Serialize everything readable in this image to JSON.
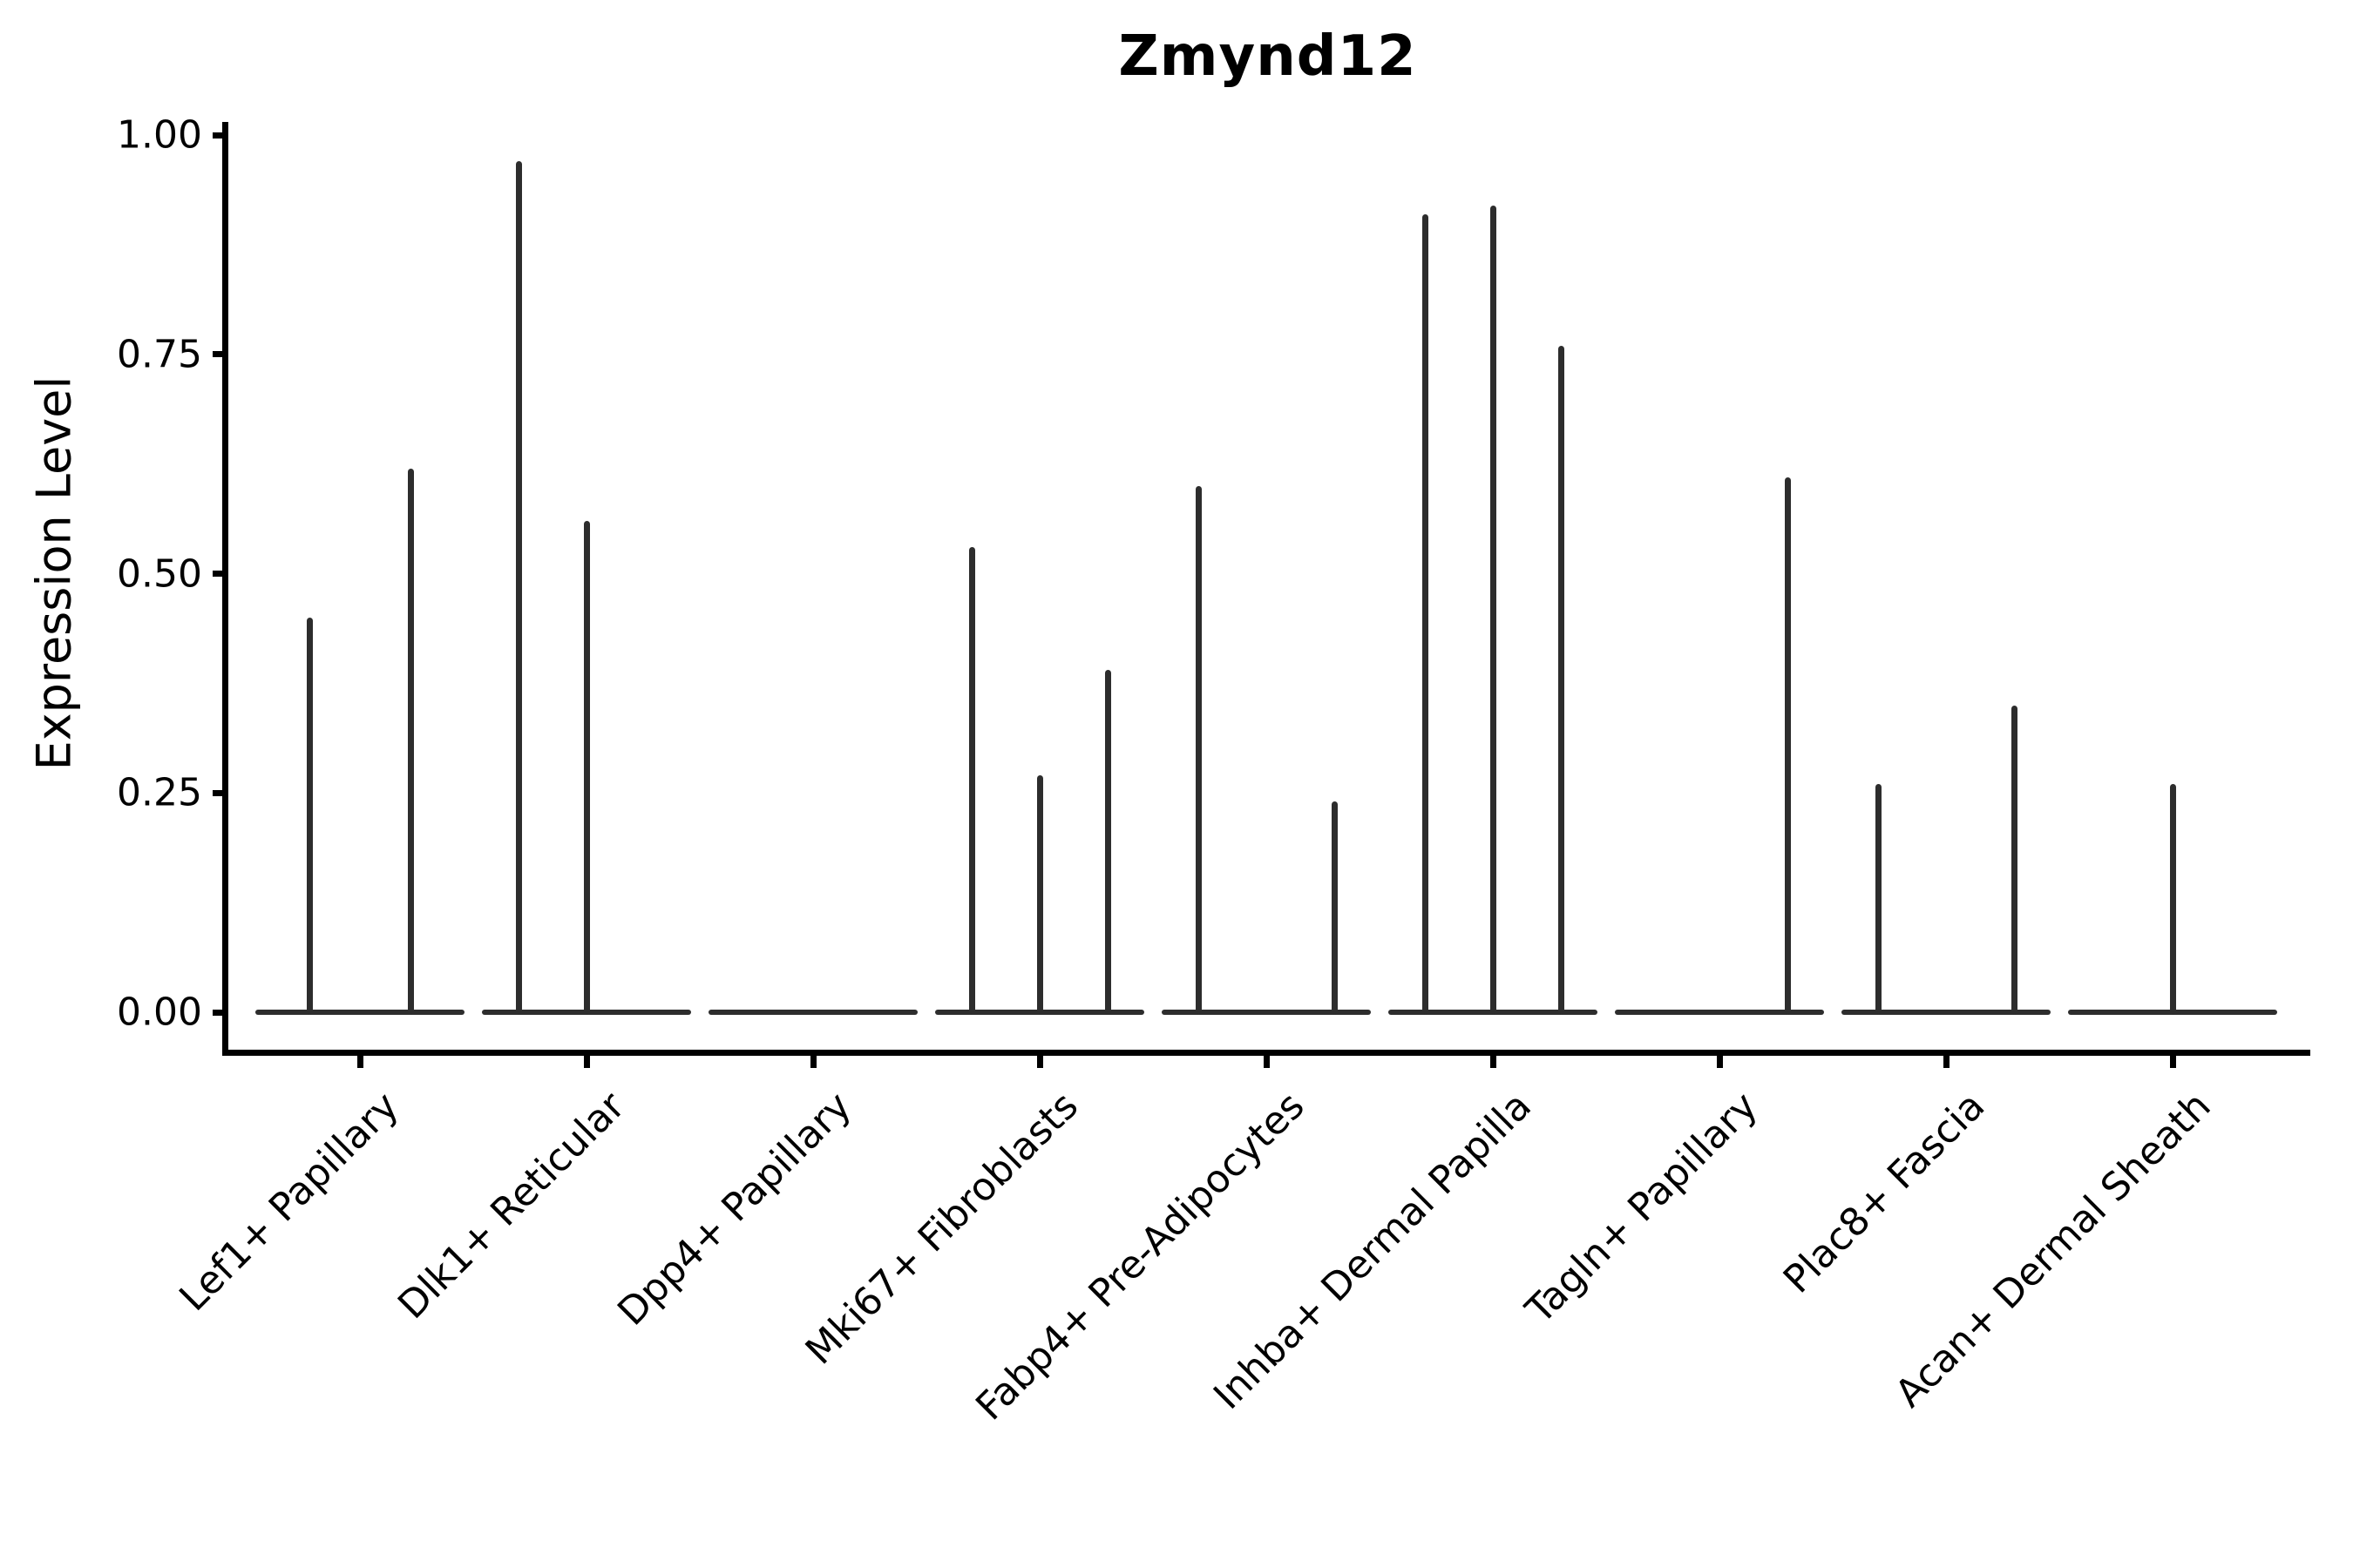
{
  "title": "Zmynd12",
  "y_axis": {
    "label": "Expression Level",
    "tick_labels": [
      "1.00",
      "0.75",
      "0.50",
      "0.25",
      "0.00"
    ]
  },
  "x_axis": {
    "categories": [
      "Lef1+ Papillary",
      "Dlk1+ Reticular",
      "Dpp4+ Papillary",
      "Mki67+ Fibroblasts",
      "Fabp4+ Pre-Adipocytes",
      "Inhba+ Dermal Papilla",
      "Tagln+ Papillary",
      "Plac8+ Fascia",
      "Acan+ Dermal Sheath"
    ]
  },
  "chart_data": {
    "type": "violin",
    "title": "Zmynd12",
    "xlabel": "",
    "ylabel": "Expression Level",
    "ylim": [
      0,
      1.02
    ],
    "yticks": [
      0,
      0.25,
      0.5,
      0.75,
      1.0
    ],
    "grid": false,
    "legend": "none",
    "categories": [
      "Lef1+ Papillary",
      "Dlk1+ Reticular",
      "Dpp4+ Papillary",
      "Mki67+ Fibroblasts",
      "Fabp4+ Pre-Adipocytes",
      "Inhba+ Dermal Papilla",
      "Tagln+ Papillary",
      "Plac8+ Fascia",
      "Acan+ Dermal Sheath"
    ],
    "series": [
      {
        "category": "Lef1+ Papillary",
        "violins": [
          {
            "offset": -58,
            "max_expression": 0.45
          },
          {
            "offset": 58,
            "max_expression": 0.62
          }
        ]
      },
      {
        "category": "Dlk1+ Reticular",
        "violins": [
          {
            "offset": -78,
            "max_expression": 0.97
          },
          {
            "offset": 0,
            "max_expression": 0.56
          }
        ]
      },
      {
        "category": "Dpp4+ Papillary",
        "violins": []
      },
      {
        "category": "Mki67+ Fibroblasts",
        "violins": [
          {
            "offset": -78,
            "max_expression": 0.53
          },
          {
            "offset": 0,
            "max_expression": 0.27
          },
          {
            "offset": 78,
            "max_expression": 0.39
          }
        ]
      },
      {
        "category": "Fabp4+ Pre-Adipocytes",
        "violins": [
          {
            "offset": -78,
            "max_expression": 0.6
          },
          {
            "offset": 78,
            "max_expression": 0.24
          }
        ]
      },
      {
        "category": "Inhba+ Dermal Papilla",
        "violins": [
          {
            "offset": -78,
            "max_expression": 0.91
          },
          {
            "offset": 0,
            "max_expression": 0.92
          },
          {
            "offset": 78,
            "max_expression": 0.76
          }
        ]
      },
      {
        "category": "Tagln+ Papillary",
        "violins": [
          {
            "offset": 78,
            "max_expression": 0.61
          }
        ]
      },
      {
        "category": "Plac8+ Fascia",
        "violins": [
          {
            "offset": -78,
            "max_expression": 0.26
          },
          {
            "offset": 78,
            "max_expression": 0.35
          }
        ]
      },
      {
        "category": "Acan+ Dermal Sheath",
        "violins": [
          {
            "offset": 0,
            "max_expression": 0.26
          }
        ]
      }
    ],
    "colors": {
      "violin_line": "#2d2d2d",
      "axis": "#000000",
      "background": "#ffffff"
    }
  }
}
